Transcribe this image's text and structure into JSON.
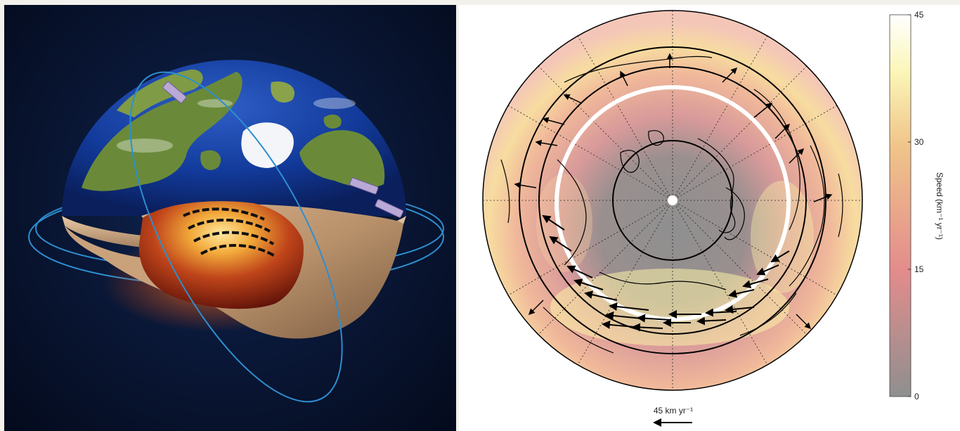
{
  "left_figure": {
    "illustration": "earth-cutaway-with-satellites"
  },
  "right_figure": {
    "colorbar": {
      "title": "Speed (km⁻¹ yr⁻¹)",
      "ticks": [
        "0",
        "15",
        "30",
        "45"
      ],
      "tick_values": [
        0,
        15,
        30,
        45
      ],
      "min": 0,
      "max": 45,
      "colors": [
        "#8f8f8f",
        "#e38c8c",
        "#f0c58a",
        "#fbf6b8",
        "#ffffff"
      ]
    },
    "scale_arrow": {
      "label": "45 km yr⁻¹",
      "direction": "left"
    },
    "map": {
      "projection": "north-polar orthographic",
      "tangent_cylinder_circle_color": "#ffffff",
      "latitude_rings": 3
    }
  }
}
